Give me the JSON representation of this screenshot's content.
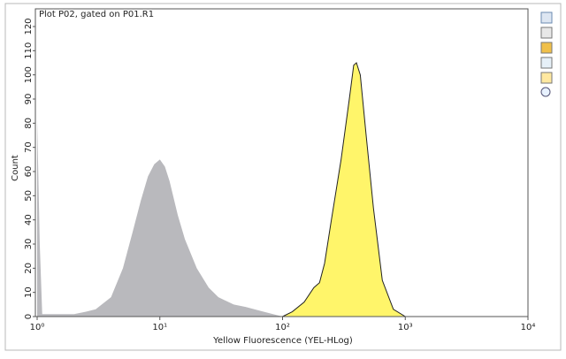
{
  "chart_data": {
    "type": "area",
    "title": "Plot P02, gated on P01.R1",
    "x_label": "Yellow Fluorescence (YEL-HLog)",
    "y_label": "Count",
    "log_x": true,
    "xlim": [
      1,
      10000
    ],
    "xticks": [
      {
        "value": 1,
        "label": "10⁰"
      },
      {
        "value": 10,
        "label": "10¹"
      },
      {
        "value": 100,
        "label": "10²"
      },
      {
        "value": 1000,
        "label": "10³"
      },
      {
        "value": 10000,
        "label": "10⁴"
      }
    ],
    "ylim": [
      0,
      120
    ],
    "yticks": [
      0,
      10,
      20,
      30,
      40,
      50,
      60,
      70,
      80,
      90,
      100,
      110,
      120
    ],
    "series": [
      {
        "color": "#b9b9bd",
        "outline": null,
        "x": [
          1,
          1.05,
          1.1,
          1.5,
          2,
          2.5,
          3,
          4,
          5,
          6,
          7,
          8,
          9,
          10,
          11,
          12,
          14,
          16,
          20,
          25,
          30,
          40,
          50,
          70,
          100
        ],
        "values": [
          82,
          30,
          1,
          1,
          1,
          2,
          3,
          8,
          20,
          35,
          48,
          58,
          63,
          65,
          62,
          56,
          42,
          32,
          20,
          12,
          8,
          5,
          4,
          2,
          0
        ]
      },
      {
        "color": "#fff56a",
        "outline": "#222222",
        "x": [
          100,
          120,
          150,
          180,
          200,
          220,
          250,
          300,
          350,
          380,
          400,
          430,
          480,
          550,
          650,
          800,
          1000
        ],
        "values": [
          0,
          2,
          6,
          12,
          14,
          22,
          40,
          65,
          90,
          104,
          105,
          100,
          75,
          45,
          15,
          3,
          0
        ]
      }
    ]
  }
}
